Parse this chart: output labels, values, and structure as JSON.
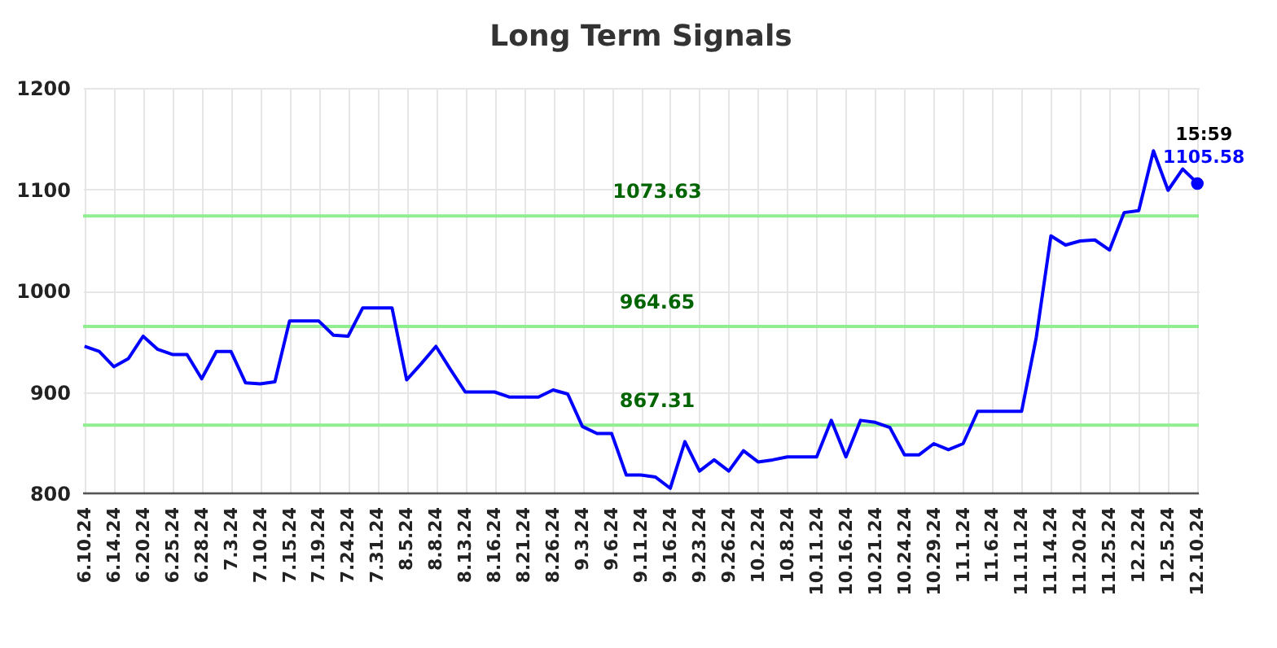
{
  "chart_data": {
    "type": "line",
    "title": "Long Term Signals",
    "categories": [
      "6.10.24",
      null,
      "6.14.24",
      null,
      "6.20.24",
      null,
      "6.25.24",
      null,
      "6.28.24",
      null,
      "7.3.24",
      null,
      "7.10.24",
      null,
      "7.15.24",
      null,
      "7.19.24",
      null,
      "7.24.24",
      null,
      "7.31.24",
      null,
      "8.5.24",
      null,
      "8.8.24",
      null,
      "8.13.24",
      null,
      "8.16.24",
      null,
      "8.21.24",
      null,
      "8.26.24",
      null,
      "9.3.24",
      null,
      "9.6.24",
      null,
      "9.11.24",
      null,
      "9.16.24",
      null,
      "9.23.24",
      null,
      "9.26.24",
      null,
      "10.2.24",
      null,
      "10.8.24",
      null,
      "10.11.24",
      null,
      "10.16.24",
      null,
      "10.21.24",
      null,
      "10.24.24",
      null,
      "10.29.24",
      null,
      "11.1.24",
      null,
      "11.6.24",
      null,
      "11.11.24",
      null,
      "11.14.24",
      null,
      "11.20.24",
      null,
      "11.25.24",
      null,
      "12.2.24",
      null,
      "12.5.24",
      null,
      "12.10.24"
    ],
    "series": [
      {
        "type": "line",
        "color": "#0000ff",
        "values": [
          945,
          940,
          925,
          933,
          955,
          942,
          937,
          937,
          913,
          940,
          940,
          909,
          908,
          910,
          970,
          970,
          970,
          956,
          955,
          983,
          983,
          983,
          912,
          928,
          945,
          922,
          900,
          900,
          900,
          895,
          895,
          895,
          902,
          898,
          866,
          859,
          859,
          818,
          818,
          816,
          805,
          851,
          822,
          833,
          822,
          842,
          831,
          833,
          836,
          836,
          836,
          872,
          836,
          872,
          870,
          865,
          838,
          838,
          849,
          843,
          849,
          881,
          881,
          881,
          881,
          954,
          1054,
          1045,
          1049,
          1050,
          1040,
          1077,
          1079,
          1138,
          1099,
          1120,
          1106
        ]
      },
      {
        "type": "scatter",
        "color": "#0000ff",
        "marker": "circle",
        "x": [
          "12.10.24"
        ],
        "values": [
          1105.58
        ],
        "value_labels": [
          "1105.58"
        ]
      }
    ],
    "annotations": [
      {
        "text": "15:59",
        "x": "12.10.24",
        "y": 1105.58
      }
    ],
    "ylim": [
      800,
      1200
    ],
    "yticks": [
      800,
      900,
      1000,
      1100,
      1200
    ],
    "grid": true,
    "ref_lines": [
      {
        "axis": "y",
        "value": 1073.63,
        "label": "1073.63",
        "color": "#90ee90"
      },
      {
        "axis": "y",
        "value": 964.65,
        "label": "964.65",
        "color": "#90ee90"
      },
      {
        "axis": "y",
        "value": 867.31,
        "label": "867.31",
        "color": "#90ee90"
      }
    ]
  }
}
